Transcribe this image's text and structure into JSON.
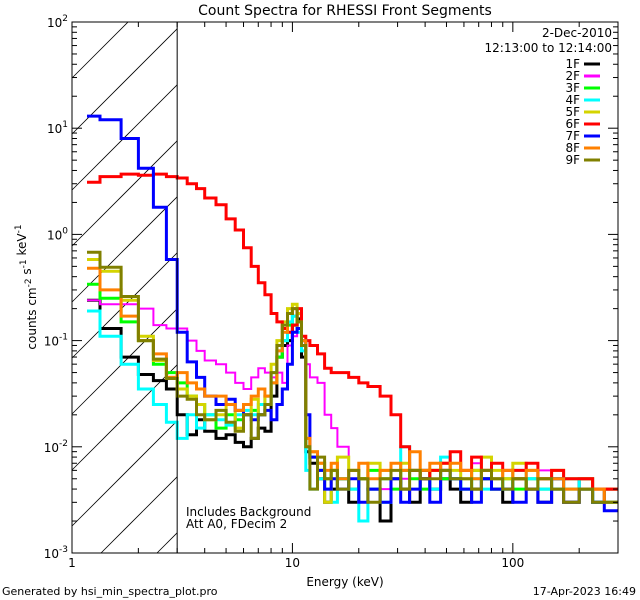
{
  "chart_data": {
    "type": "line",
    "step": true,
    "title": "Count Spectra for RHESSI Front Segments",
    "xlabel": "Energy (keV)",
    "ylabel": "counts cm-2 s-1 keV-1",
    "xscale": "log",
    "yscale": "log",
    "xlim": [
      1,
      300
    ],
    "ylim": [
      0.001,
      100
    ],
    "x_ticks": [
      {
        "value": 1,
        "label": "1"
      },
      {
        "value": 10,
        "label": "10"
      },
      {
        "value": 100,
        "label": "100"
      }
    ],
    "y_ticks": [
      {
        "value": 100,
        "base": "10",
        "exp": "2"
      },
      {
        "value": 10,
        "base": "10",
        "exp": "1"
      },
      {
        "value": 1,
        "base": "10",
        "exp": "0"
      },
      {
        "value": 0.1,
        "base": "10",
        "exp": "-1"
      },
      {
        "value": 0.01,
        "base": "10",
        "exp": "-2"
      },
      {
        "value": 0.001,
        "base": "10",
        "exp": "-3"
      }
    ],
    "hatched_region_keV": [
      1,
      3
    ],
    "legend_header": [
      "2-Dec-2010",
      "12:13:00 to 12:14:00"
    ],
    "legend_position": "top-right",
    "annotations": [
      "Includes Background",
      "Att A0, FDecim 2"
    ],
    "energy_edges": [
      1.17,
      1.34,
      1.67,
      2.0,
      2.34,
      2.68,
      3.0,
      3.33,
      3.67,
      4.0,
      4.5,
      5.0,
      5.5,
      6.0,
      6.5,
      7.0,
      7.5,
      8.0,
      8.5,
      9.0,
      9.5,
      10.0,
      10.5,
      11.0,
      11.5,
      12.0,
      13,
      14,
      15,
      16,
      18,
      20,
      22,
      25,
      28,
      31,
      34,
      38,
      42,
      47,
      52,
      58,
      65,
      72,
      80,
      90,
      100,
      115,
      130,
      150,
      170,
      200,
      230,
      260,
      300
    ],
    "series": [
      {
        "name": "1F",
        "color": "#000000",
        "values": [
          0.24,
          0.13,
          0.07,
          0.048,
          0.042,
          0.035,
          0.02,
          0.013,
          0.018,
          0.014,
          0.012,
          0.013,
          0.011,
          0.01,
          0.012,
          0.015,
          0.014,
          0.03,
          0.07,
          0.09,
          0.1,
          0.14,
          0.16,
          0.07,
          0.009,
          0.007,
          0.005,
          0.003,
          0.004,
          0.005,
          0.003,
          0.005,
          0.004,
          0.002,
          0.005,
          0.004,
          0.003,
          0.006,
          0.004,
          0.005,
          0.004,
          0.003,
          0.004,
          0.005,
          0.004,
          0.003,
          0.005,
          0.004,
          0.003,
          0.004,
          0.003,
          0.005,
          0.003,
          0.004
        ]
      },
      {
        "name": "2F",
        "color": "#ff00ff",
        "values": [
          0.24,
          0.22,
          0.22,
          0.2,
          0.14,
          0.13,
          0.13,
          0.1,
          0.08,
          0.065,
          0.06,
          0.05,
          0.04,
          0.035,
          0.045,
          0.055,
          0.05,
          0.045,
          0.05,
          0.04,
          0.09,
          0.11,
          0.12,
          0.11,
          0.06,
          0.045,
          0.04,
          0.02,
          0.015,
          0.01,
          0.006,
          0.007,
          0.005,
          0.004,
          0.006,
          0.005,
          0.006,
          0.005,
          0.004,
          0.006,
          0.005,
          0.006,
          0.007,
          0.005,
          0.006,
          0.005,
          0.006,
          0.005,
          0.006,
          0.005,
          0.005,
          0.004,
          0.004,
          0.003
        ]
      },
      {
        "name": "3F",
        "color": "#00ff00",
        "values": [
          0.34,
          0.25,
          0.15,
          0.1,
          0.06,
          0.05,
          0.04,
          0.03,
          0.025,
          0.02,
          0.015,
          0.02,
          0.018,
          0.02,
          0.022,
          0.02,
          0.025,
          0.04,
          0.07,
          0.1,
          0.14,
          0.17,
          0.13,
          0.09,
          0.01,
          0.008,
          0.006,
          0.005,
          0.006,
          0.005,
          0.004,
          0.005,
          0.006,
          0.005,
          0.004,
          0.006,
          0.005,
          0.004,
          0.006,
          0.005,
          0.005,
          0.004,
          0.006,
          0.005,
          0.004,
          0.005,
          0.004,
          0.005,
          0.004,
          0.005,
          0.004,
          0.004,
          0.003,
          0.003
        ]
      },
      {
        "name": "4F",
        "color": "#00ffff",
        "values": [
          0.19,
          0.11,
          0.06,
          0.035,
          0.025,
          0.017,
          0.012,
          0.02,
          0.015,
          0.02,
          0.018,
          0.016,
          0.02,
          0.022,
          0.02,
          0.025,
          0.03,
          0.05,
          0.08,
          0.1,
          0.15,
          0.17,
          0.12,
          0.08,
          0.006,
          0.004,
          0.005,
          0.004,
          0.003,
          0.005,
          0.004,
          0.002,
          0.004,
          0.003,
          0.005,
          0.01,
          0.006,
          0.005,
          0.004,
          0.008,
          0.005,
          0.004,
          0.005,
          0.004,
          0.005,
          0.004,
          0.006,
          0.005,
          0.004,
          0.004,
          0.005,
          0.004,
          0.003,
          0.003
        ]
      },
      {
        "name": "5F",
        "color": "#d4d400",
        "values": [
          0.58,
          0.45,
          0.24,
          0.11,
          0.065,
          0.045,
          0.035,
          0.03,
          0.025,
          0.018,
          0.02,
          0.025,
          0.015,
          0.02,
          0.028,
          0.02,
          0.03,
          0.06,
          0.1,
          0.15,
          0.2,
          0.22,
          0.18,
          0.1,
          0.012,
          0.009,
          0.007,
          0.003,
          0.006,
          0.008,
          0.006,
          0.005,
          0.007,
          0.006,
          0.005,
          0.007,
          0.006,
          0.005,
          0.006,
          0.007,
          0.006,
          0.005,
          0.006,
          0.008,
          0.006,
          0.005,
          0.007,
          0.006,
          0.005,
          0.006,
          0.005,
          0.005,
          0.004,
          0.004
        ]
      },
      {
        "name": "6F",
        "color": "#ff0000",
        "values": [
          3.1,
          3.5,
          3.7,
          3.6,
          3.7,
          3.5,
          3.4,
          3.0,
          2.7,
          2.2,
          1.9,
          1.4,
          1.1,
          0.75,
          0.5,
          0.35,
          0.27,
          0.18,
          0.15,
          0.13,
          0.12,
          0.14,
          0.2,
          0.11,
          0.1,
          0.09,
          0.075,
          0.055,
          0.05,
          0.05,
          0.045,
          0.04,
          0.037,
          0.03,
          0.02,
          0.01,
          0.006,
          0.005,
          0.006,
          0.007,
          0.009,
          0.006,
          0.008,
          0.006,
          0.007,
          0.006,
          0.006,
          0.007,
          0.005,
          0.006,
          0.005,
          0.005,
          0.004,
          0.004
        ]
      },
      {
        "name": "7F",
        "color": "#0000ff",
        "values": [
          13,
          12,
          8,
          4.2,
          1.8,
          0.58,
          0.12,
          0.063,
          0.045,
          0.03,
          0.025,
          0.028,
          0.022,
          0.02,
          0.018,
          0.02,
          0.022,
          0.018,
          0.025,
          0.035,
          0.06,
          0.12,
          0.13,
          0.1,
          0.02,
          0.008,
          0.006,
          0.004,
          0.005,
          0.004,
          0.005,
          0.003,
          0.004,
          0.003,
          0.005,
          0.003,
          0.004,
          0.005,
          0.003,
          0.006,
          0.005,
          0.004,
          0.003,
          0.005,
          0.004,
          0.004,
          0.003,
          0.004,
          0.003,
          0.005,
          0.003,
          0.004,
          0.003,
          0.0025
        ]
      },
      {
        "name": "8F",
        "color": "#ff8000",
        "values": [
          0.48,
          0.3,
          0.17,
          0.1,
          0.075,
          0.045,
          0.05,
          0.04,
          0.035,
          0.03,
          0.03,
          0.025,
          0.022,
          0.025,
          0.03,
          0.035,
          0.03,
          0.04,
          0.08,
          0.12,
          0.18,
          0.2,
          0.15,
          0.1,
          0.012,
          0.009,
          0.007,
          0.006,
          0.007,
          0.005,
          0.006,
          0.007,
          0.005,
          0.006,
          0.007,
          0.006,
          0.009,
          0.006,
          0.007,
          0.006,
          0.007,
          0.006,
          0.005,
          0.006,
          0.005,
          0.006,
          0.005,
          0.006,
          0.005,
          0.005,
          0.004,
          0.004,
          0.004,
          0.003
        ]
      },
      {
        "name": "9F",
        "color": "#808000",
        "values": [
          0.68,
          0.49,
          0.26,
          0.1,
          0.067,
          0.044,
          0.03,
          0.028,
          0.02,
          0.018,
          0.022,
          0.017,
          0.014,
          0.02,
          0.012,
          0.02,
          0.025,
          0.05,
          0.09,
          0.14,
          0.18,
          0.2,
          0.15,
          0.09,
          0.01,
          0.004,
          0.008,
          0.005,
          0.006,
          0.004,
          0.006,
          0.005,
          0.003,
          0.005,
          0.006,
          0.004,
          0.006,
          0.005,
          0.005,
          0.006,
          0.005,
          0.005,
          0.004,
          0.006,
          0.005,
          0.004,
          0.005,
          0.004,
          0.005,
          0.004,
          0.003,
          0.004,
          0.003,
          0.003
        ]
      }
    ]
  },
  "footer": {
    "generated_by": "Generated by hsi_min_spectra_plot.pro",
    "timestamp": "17-Apr-2023 16:49"
  }
}
